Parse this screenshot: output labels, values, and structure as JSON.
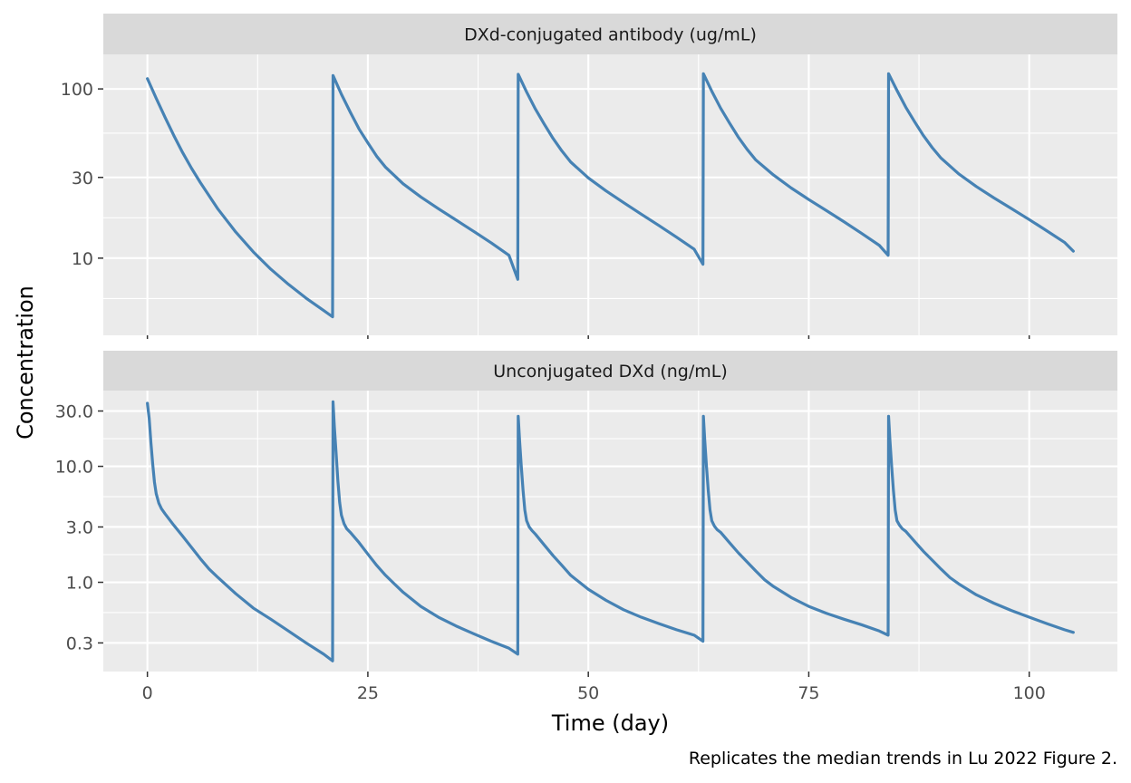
{
  "chart_data": {
    "type": "line",
    "facet_layout": "stacked",
    "x_scale": "linear",
    "y_scale": "log",
    "shared_x": true,
    "grid": true,
    "legend": "none",
    "line_color": "#4682b4",
    "xlabel": "Time (day)",
    "ylabel": "Concentration",
    "caption": "Replicates the median trends in Lu 2022 Figure 2.",
    "x_ticks": [
      0,
      25,
      50,
      75,
      100
    ],
    "x_tick_labels": [
      "0",
      "25",
      "50",
      "75",
      "100"
    ],
    "xlim": [
      -5,
      110
    ],
    "dose_times": [
      0,
      21,
      42,
      63,
      84
    ],
    "panels": [
      {
        "strip_label": "DXd-conjugated antibody (ug/mL)",
        "y_ticks": [
          10,
          30,
          100
        ],
        "y_tick_labels": [
          "10",
          "30",
          "100"
        ],
        "ylim": [
          3.5,
          160
        ],
        "series": [
          {
            "x": [
              0,
              1,
              2,
              3,
              4,
              5,
              6,
              8,
              10,
              12,
              14,
              16,
              18,
              20,
              21,
              21.05,
              22,
              23,
              24,
              25,
              26,
              27,
              29,
              31,
              33,
              35,
              37,
              39,
              41,
              42,
              42.05,
              43,
              44,
              45,
              46,
              47,
              48,
              50,
              52,
              54,
              56,
              58,
              60,
              62,
              63,
              63.05,
              64,
              65,
              66,
              67,
              68,
              69,
              71,
              73,
              75,
              77,
              79,
              81,
              83,
              84,
              84.05,
              85,
              86,
              87,
              88,
              89,
              90,
              92,
              94,
              96,
              98,
              100,
              102,
              104,
              105
            ],
            "y": [
              115,
              88,
              68,
              53,
              42,
              34,
              28,
              19.5,
              14.3,
              10.9,
              8.6,
              7.0,
              5.8,
              4.9,
              4.5,
              120,
              93,
              73,
              58,
              48,
              40,
              34.5,
              27.5,
              23,
              19.6,
              16.8,
              14.4,
              12.3,
              10.4,
              7.5,
              122,
              96,
              76,
              62,
              51,
              43,
              37,
              29.8,
              25,
              21.3,
              18.2,
              15.6,
              13.3,
              11.3,
              9.2,
              123,
              97,
              77,
              63,
              52,
              44,
              38,
              31,
              26,
              22.2,
              19.1,
              16.4,
              14.0,
              11.9,
              10.4,
              123,
              98,
              78,
              64,
              53,
              45,
              39,
              31.5,
              26.5,
              22.7,
              19.6,
              16.9,
              14.5,
              12.4,
              11.0
            ]
          }
        ]
      },
      {
        "strip_label": "Unconjugated DXd (ng/mL)",
        "y_ticks": [
          0.3,
          1,
          3,
          10,
          30
        ],
        "y_tick_labels": [
          "0.3",
          "1.0",
          "3.0",
          "10.0",
          "30.0"
        ],
        "ylim": [
          0.17,
          45
        ],
        "series": [
          {
            "x": [
              0,
              0.2,
              0.4,
              0.6,
              0.8,
              1.0,
              1.3,
              1.6,
              2,
              3,
              4,
              5,
              6,
              7,
              8,
              10,
              12,
              14,
              16,
              18,
              20,
              21,
              21.05,
              21.2,
              21.4,
              21.6,
              21.8,
              22.0,
              22.3,
              22.6,
              23,
              24,
              25,
              26,
              27,
              28,
              29,
              31,
              33,
              35,
              37,
              39,
              41,
              42,
              42.05,
              42.2,
              42.4,
              42.6,
              42.8,
              43.0,
              43.3,
              43.6,
              44,
              45,
              46,
              47,
              48,
              49,
              50,
              52,
              54,
              56,
              58,
              60,
              62,
              63,
              63.05,
              63.2,
              63.4,
              63.6,
              63.8,
              64.0,
              64.3,
              64.6,
              65,
              66,
              67,
              68,
              69,
              70,
              71,
              73,
              75,
              77,
              79,
              81,
              83,
              84,
              84.05,
              84.2,
              84.4,
              84.6,
              84.8,
              85.0,
              85.3,
              85.6,
              86,
              87,
              88,
              89,
              90,
              91,
              92,
              94,
              96,
              98,
              100,
              102,
              104,
              105
            ],
            "y": [
              35,
              26,
              16,
              10.5,
              7.3,
              5.8,
              4.8,
              4.3,
              3.9,
              3.1,
              2.5,
              2.0,
              1.6,
              1.3,
              1.1,
              0.8,
              0.6,
              0.48,
              0.38,
              0.3,
              0.24,
              0.21,
              36,
              22,
              13,
              7.5,
              4.9,
              3.8,
              3.2,
              2.9,
              2.7,
              2.2,
              1.75,
              1.4,
              1.15,
              0.97,
              0.82,
              0.62,
              0.5,
              0.42,
              0.36,
              0.31,
              0.27,
              0.24,
              27,
              17,
              10,
              6.2,
              4.2,
              3.4,
              3.0,
              2.8,
              2.6,
              2.1,
              1.7,
              1.4,
              1.15,
              1.0,
              0.87,
              0.7,
              0.58,
              0.5,
              0.44,
              0.39,
              0.35,
              0.31,
              27,
              17,
              10,
              6.2,
              4.2,
              3.4,
              3.05,
              2.85,
              2.7,
              2.2,
              1.8,
              1.5,
              1.25,
              1.05,
              0.92,
              0.74,
              0.62,
              0.54,
              0.48,
              0.43,
              0.38,
              0.35,
              27,
              17,
              10,
              6.2,
              4.2,
              3.4,
              3.1,
              2.9,
              2.75,
              2.25,
              1.85,
              1.55,
              1.3,
              1.1,
              0.97,
              0.78,
              0.66,
              0.57,
              0.5,
              0.44,
              0.39,
              0.37
            ]
          }
        ]
      }
    ]
  }
}
